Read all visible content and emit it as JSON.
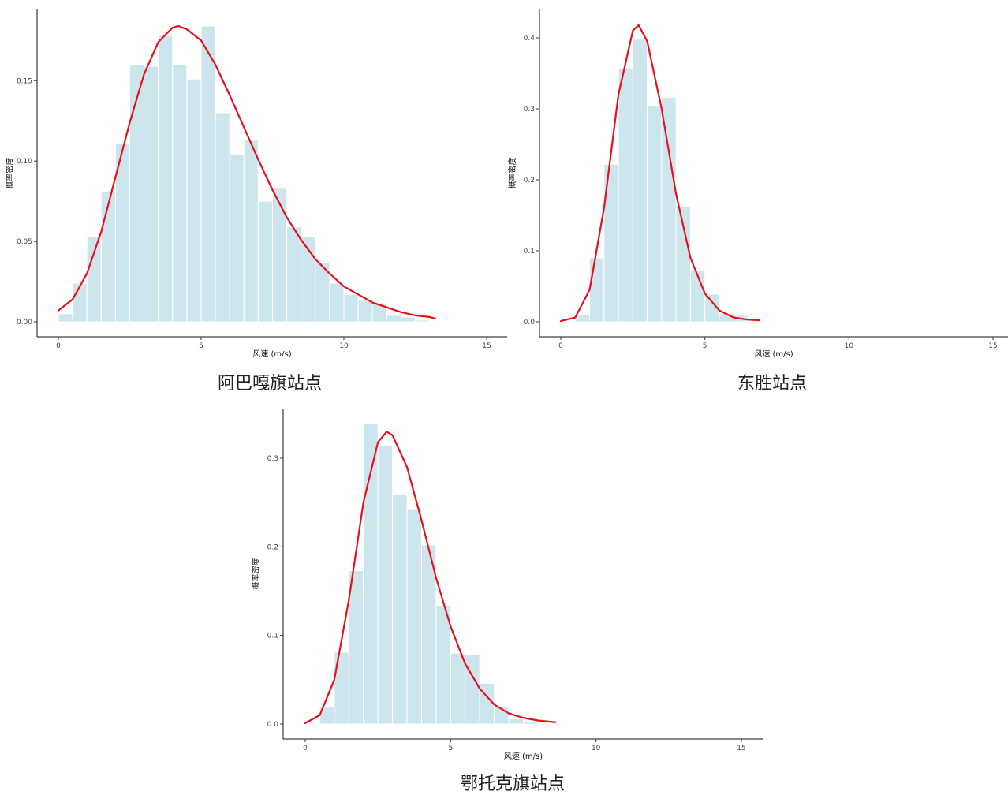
{
  "chart_data": [
    {
      "type": "bar",
      "caption": "阿巴嘎旗站点",
      "xlabel": "风速 (m/s)",
      "ylabel": "概率密度",
      "xlim": [
        0,
        15
      ],
      "ylim": [
        0,
        0.19
      ],
      "xticks": [
        0,
        5,
        10,
        15
      ],
      "yticks": [
        0.0,
        0.05,
        0.1,
        0.15
      ],
      "ytick_labels": [
        "0.00",
        "0.05",
        "0.10",
        "0.15"
      ],
      "bin_width": 0.5,
      "bins": [
        {
          "x0": 0.0,
          "density": 0.005
        },
        {
          "x0": 0.5,
          "density": 0.024
        },
        {
          "x0": 1.0,
          "density": 0.053
        },
        {
          "x0": 1.5,
          "density": 0.081
        },
        {
          "x0": 2.0,
          "density": 0.111
        },
        {
          "x0": 2.5,
          "density": 0.16
        },
        {
          "x0": 3.0,
          "density": 0.159
        },
        {
          "x0": 3.5,
          "density": 0.178
        },
        {
          "x0": 4.0,
          "density": 0.16
        },
        {
          "x0": 4.5,
          "density": 0.151
        },
        {
          "x0": 5.0,
          "density": 0.184
        },
        {
          "x0": 5.5,
          "density": 0.13
        },
        {
          "x0": 6.0,
          "density": 0.104
        },
        {
          "x0": 6.5,
          "density": 0.113
        },
        {
          "x0": 7.0,
          "density": 0.075
        },
        {
          "x0": 7.5,
          "density": 0.083
        },
        {
          "x0": 8.0,
          "density": 0.059
        },
        {
          "x0": 8.5,
          "density": 0.053
        },
        {
          "x0": 9.0,
          "density": 0.037
        },
        {
          "x0": 9.5,
          "density": 0.024
        },
        {
          "x0": 10.0,
          "density": 0.017
        },
        {
          "x0": 10.5,
          "density": 0.014
        },
        {
          "x0": 11.0,
          "density": 0.011
        },
        {
          "x0": 11.5,
          "density": 0.004
        },
        {
          "x0": 12.0,
          "density": 0.003
        },
        {
          "x0": 12.5,
          "density": 0.001
        }
      ],
      "curve": {
        "x": [
          0,
          0.5,
          1,
          1.5,
          2,
          2.5,
          3,
          3.5,
          4,
          4.2,
          4.5,
          5,
          5.5,
          6,
          6.5,
          7,
          7.5,
          8,
          8.5,
          9,
          9.5,
          10,
          10.5,
          11,
          11.5,
          12,
          12.5,
          13,
          13.2
        ],
        "y": [
          0.007,
          0.014,
          0.03,
          0.056,
          0.09,
          0.124,
          0.154,
          0.174,
          0.183,
          0.184,
          0.182,
          0.175,
          0.16,
          0.141,
          0.121,
          0.101,
          0.082,
          0.065,
          0.051,
          0.039,
          0.03,
          0.022,
          0.017,
          0.012,
          0.009,
          0.006,
          0.004,
          0.003,
          0.002
        ]
      },
      "bar_color": "#cde6ee",
      "curve_color": "#e8101a"
    },
    {
      "type": "bar",
      "caption": "东胜站点",
      "xlabel": "风速 (m/s)",
      "ylabel": "概率密度",
      "xlim": [
        0,
        15
      ],
      "ylim": [
        0,
        0.42
      ],
      "xticks": [
        0,
        5,
        10,
        15
      ],
      "yticks": [
        0.0,
        0.1,
        0.2,
        0.3,
        0.4
      ],
      "ytick_labels": [
        "0.0",
        "0.1",
        "0.2",
        "0.3",
        "0.4"
      ],
      "bin_width": 0.5,
      "bins": [
        {
          "x0": 0.5,
          "density": 0.01
        },
        {
          "x0": 1.0,
          "density": 0.09
        },
        {
          "x0": 1.5,
          "density": 0.222
        },
        {
          "x0": 2.0,
          "density": 0.357
        },
        {
          "x0": 2.5,
          "density": 0.398
        },
        {
          "x0": 3.0,
          "density": 0.304
        },
        {
          "x0": 3.5,
          "density": 0.316
        },
        {
          "x0": 4.0,
          "density": 0.162
        },
        {
          "x0": 4.5,
          "density": 0.073
        },
        {
          "x0": 5.0,
          "density": 0.039
        },
        {
          "x0": 5.5,
          "density": 0.012
        },
        {
          "x0": 6.0,
          "density": 0.009
        }
      ],
      "curve": {
        "x": [
          0,
          0.5,
          1,
          1.5,
          2,
          2.5,
          2.7,
          3,
          3.5,
          4,
          4.5,
          5,
          5.5,
          6,
          6.5,
          6.9
        ],
        "y": [
          0.001,
          0.006,
          0.045,
          0.16,
          0.32,
          0.41,
          0.418,
          0.395,
          0.3,
          0.18,
          0.09,
          0.04,
          0.016,
          0.006,
          0.003,
          0.002
        ]
      },
      "bar_color": "#cde6ee",
      "curve_color": "#e8101a"
    },
    {
      "type": "bar",
      "caption": "鄂托克旗站点",
      "xlabel": "风速 (m/s)",
      "ylabel": "概率密度",
      "xlim": [
        0,
        15
      ],
      "ylim": [
        0,
        0.35
      ],
      "xticks": [
        0,
        5,
        10,
        15
      ],
      "yticks": [
        0.0,
        0.1,
        0.2,
        0.3
      ],
      "ytick_labels": [
        "0.0",
        "0.1",
        "0.2",
        "0.3"
      ],
      "bin_width": 0.5,
      "bins": [
        {
          "x0": 0.5,
          "density": 0.019
        },
        {
          "x0": 1.0,
          "density": 0.081
        },
        {
          "x0": 1.5,
          "density": 0.173
        },
        {
          "x0": 2.0,
          "density": 0.339
        },
        {
          "x0": 2.5,
          "density": 0.314
        },
        {
          "x0": 3.0,
          "density": 0.259
        },
        {
          "x0": 3.5,
          "density": 0.242
        },
        {
          "x0": 4.0,
          "density": 0.202
        },
        {
          "x0": 4.5,
          "density": 0.134
        },
        {
          "x0": 5.0,
          "density": 0.08
        },
        {
          "x0": 5.5,
          "density": 0.078
        },
        {
          "x0": 6.0,
          "density": 0.046
        },
        {
          "x0": 6.5,
          "density": 0.019
        },
        {
          "x0": 7.0,
          "density": 0.006
        },
        {
          "x0": 7.5,
          "density": 0.003
        }
      ],
      "curve": {
        "x": [
          0,
          0.5,
          1,
          1.5,
          2,
          2.5,
          2.8,
          3,
          3.5,
          4,
          4.5,
          5,
          5.5,
          6,
          6.5,
          7,
          7.5,
          8,
          8.6
        ],
        "y": [
          0.001,
          0.01,
          0.05,
          0.14,
          0.25,
          0.318,
          0.33,
          0.326,
          0.29,
          0.23,
          0.165,
          0.11,
          0.068,
          0.04,
          0.022,
          0.012,
          0.007,
          0.004,
          0.002
        ]
      },
      "bar_color": "#cde6ee",
      "curve_color": "#e8101a"
    }
  ]
}
